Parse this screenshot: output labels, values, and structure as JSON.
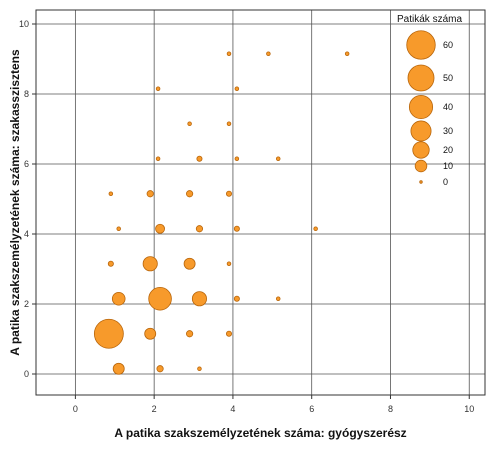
{
  "chart_data": {
    "type": "scatter",
    "xlabel": "A patika szakszemélyzetének száma: gyógyszerész",
    "ylabel": "A patika szakszemélyzetének száma: szakasszisztens",
    "xlim": [
      -1,
      10.4
    ],
    "ylim": [
      -0.6,
      10.4
    ],
    "x_ticks": [
      0,
      2,
      4,
      6,
      8,
      10
    ],
    "y_ticks": [
      0,
      2,
      4,
      6,
      8,
      10
    ],
    "grid": true,
    "legend_position": "top-right",
    "marker_color": "#f79a2b",
    "marker_edge_color": "#b8650a",
    "legend": {
      "title": "Patikák száma",
      "entries": [
        {
          "label": "60",
          "size": 60
        },
        {
          "label": "50",
          "size": 50
        },
        {
          "label": "40",
          "size": 40
        },
        {
          "label": "30",
          "size": 30
        },
        {
          "label": "20",
          "size": 20
        },
        {
          "label": "10",
          "size": 10
        },
        {
          "label": "0",
          "size": 0
        }
      ]
    },
    "points": [
      {
        "x": 3.9,
        "y": 9.15,
        "size": 1
      },
      {
        "x": 4.9,
        "y": 9.15,
        "size": 1
      },
      {
        "x": 6.9,
        "y": 9.15,
        "size": 1
      },
      {
        "x": 2.1,
        "y": 8.15,
        "size": 1
      },
      {
        "x": 4.1,
        "y": 8.15,
        "size": 1
      },
      {
        "x": 2.9,
        "y": 7.15,
        "size": 1
      },
      {
        "x": 3.9,
        "y": 7.15,
        "size": 1
      },
      {
        "x": 2.1,
        "y": 6.15,
        "size": 1
      },
      {
        "x": 3.15,
        "y": 6.15,
        "size": 2
      },
      {
        "x": 4.1,
        "y": 6.15,
        "size": 1
      },
      {
        "x": 5.15,
        "y": 6.15,
        "size": 1
      },
      {
        "x": 0.9,
        "y": 5.15,
        "size": 1
      },
      {
        "x": 1.9,
        "y": 5.15,
        "size": 3
      },
      {
        "x": 2.9,
        "y": 5.15,
        "size": 3
      },
      {
        "x": 3.9,
        "y": 5.15,
        "size": 2
      },
      {
        "x": 1.1,
        "y": 4.15,
        "size": 1
      },
      {
        "x": 2.15,
        "y": 4.15,
        "size": 6
      },
      {
        "x": 3.15,
        "y": 4.15,
        "size": 3
      },
      {
        "x": 4.1,
        "y": 4.15,
        "size": 2
      },
      {
        "x": 6.1,
        "y": 4.15,
        "size": 1
      },
      {
        "x": 0.9,
        "y": 3.15,
        "size": 2
      },
      {
        "x": 1.9,
        "y": 3.15,
        "size": 15
      },
      {
        "x": 2.9,
        "y": 3.15,
        "size": 9
      },
      {
        "x": 3.9,
        "y": 3.15,
        "size": 1
      },
      {
        "x": 1.1,
        "y": 2.15,
        "size": 12
      },
      {
        "x": 2.15,
        "y": 2.15,
        "size": 38
      },
      {
        "x": 3.15,
        "y": 2.15,
        "size": 15
      },
      {
        "x": 4.1,
        "y": 2.15,
        "size": 2
      },
      {
        "x": 5.15,
        "y": 2.15,
        "size": 1
      },
      {
        "x": 0.85,
        "y": 1.15,
        "size": 62
      },
      {
        "x": 1.9,
        "y": 1.15,
        "size": 9
      },
      {
        "x": 2.9,
        "y": 1.15,
        "size": 3
      },
      {
        "x": 3.9,
        "y": 1.15,
        "size": 2
      },
      {
        "x": 1.1,
        "y": 0.15,
        "size": 9
      },
      {
        "x": 2.15,
        "y": 0.15,
        "size": 3
      },
      {
        "x": 3.15,
        "y": 0.15,
        "size": 1
      }
    ]
  }
}
